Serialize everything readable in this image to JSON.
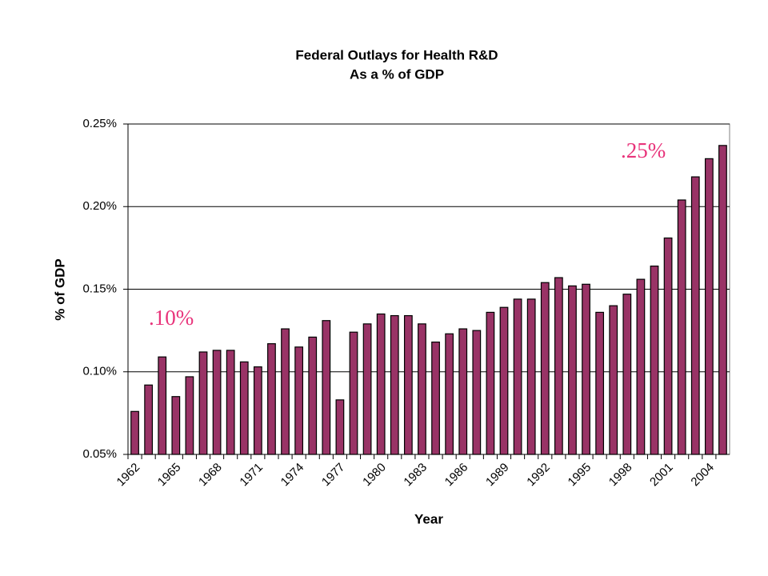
{
  "chart_data": {
    "type": "bar",
    "title": "Federal Outlays for Health R&D",
    "subtitle": "As a % of GDP",
    "y_label": "% of GDP",
    "x_label": "Year",
    "annotations": [
      ".10%",
      ".25%"
    ],
    "categories": [
      "1962",
      null,
      null,
      "1965",
      null,
      null,
      "1968",
      null,
      null,
      "1971",
      null,
      null,
      "1974",
      null,
      null,
      "1977",
      null,
      null,
      "1980",
      null,
      null,
      "1983",
      null,
      null,
      "1986",
      null,
      null,
      "1989",
      null,
      null,
      "1992",
      null,
      null,
      "1995",
      null,
      null,
      "1998",
      null,
      null,
      "2001",
      null,
      null,
      "2004",
      null
    ],
    "values": [
      0.076,
      0.092,
      0.109,
      0.085,
      0.097,
      0.112,
      0.113,
      0.113,
      0.106,
      0.103,
      0.117,
      0.126,
      0.115,
      0.121,
      0.131,
      0.083,
      0.124,
      0.129,
      0.135,
      0.134,
      0.134,
      0.129,
      0.118,
      0.123,
      0.126,
      0.125,
      0.136,
      0.139,
      0.144,
      0.144,
      0.154,
      0.157,
      0.152,
      0.153,
      0.136,
      0.14,
      0.147,
      0.156,
      0.164,
      0.181,
      0.204,
      0.218,
      0.229,
      0.237
    ],
    "color": "#993366",
    "ylim": [
      0.05,
      0.25
    ],
    "yticks": [
      {
        "value": 0.05,
        "label": "0.05%"
      },
      {
        "value": 0.1,
        "label": "0.10%"
      },
      {
        "value": 0.15,
        "label": "0.15%"
      },
      {
        "value": 0.2,
        "label": "0.20%"
      },
      {
        "value": 0.25,
        "label": "0.25%"
      }
    ],
    "grid": true
  }
}
